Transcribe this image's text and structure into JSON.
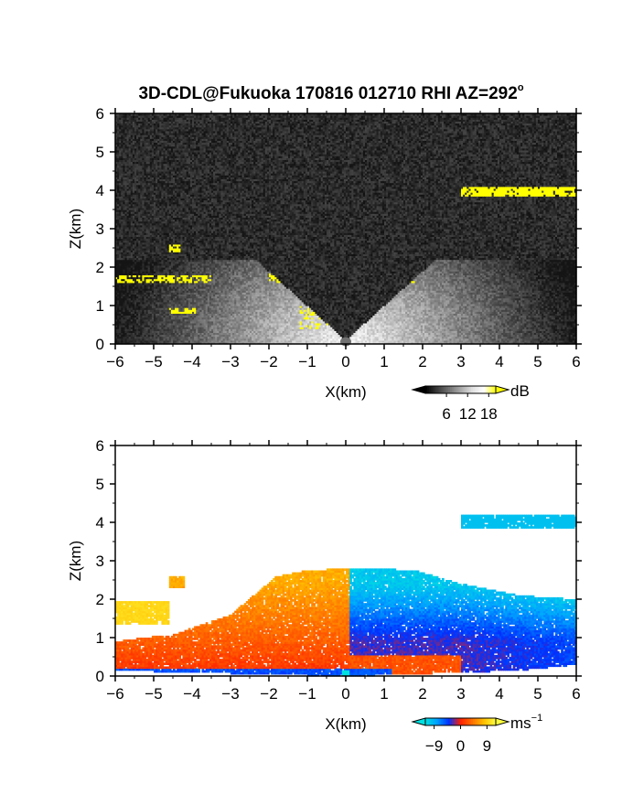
{
  "title": "3D-CDL@Fukuoka 170816 012710 RHI AZ=292",
  "title_degree": "o",
  "chart_data": [
    {
      "type": "heatmap",
      "panel": "reflectivity",
      "xlabel": "X(km)",
      "ylabel": "Z(km)",
      "xlim": [
        -6,
        6
      ],
      "ylim": [
        0,
        6
      ],
      "xticks": [
        "-6",
        "-5",
        "-4",
        "-3",
        "-2",
        "-1",
        "0",
        "1",
        "2",
        "3",
        "4",
        "5",
        "6"
      ],
      "yticks": [
        "0",
        "1",
        "2",
        "3",
        "4",
        "5",
        "6"
      ],
      "colorbar": {
        "unit": "dB",
        "ticks": [
          "6",
          "12",
          "18"
        ],
        "range": [
          0,
          20
        ],
        "colors": [
          "#000000",
          "#3a3a3a",
          "#707070",
          "#a8a8a8",
          "#e0e0e0",
          "#ffffff",
          "#ffff00"
        ]
      },
      "colors": {
        "background": "#2a2a2a",
        "high": "#ffff00"
      }
    },
    {
      "type": "heatmap",
      "panel": "doppler_velocity",
      "xlabel": "X(km)",
      "ylabel": "Z(km)",
      "xlim": [
        -6,
        6
      ],
      "ylim": [
        0,
        6
      ],
      "xticks": [
        "-6",
        "-5",
        "-4",
        "-3",
        "-2",
        "-1",
        "0",
        "1",
        "2",
        "3",
        "4",
        "5",
        "6"
      ],
      "yticks": [
        "0",
        "1",
        "2",
        "3",
        "4",
        "5",
        "6"
      ],
      "colorbar": {
        "unit": "ms",
        "unit_exp": "-1",
        "ticks": [
          "-9",
          "0",
          "9"
        ],
        "range": [
          -12,
          12
        ],
        "colors": [
          "#00e0e0",
          "#00a0ff",
          "#0030ff",
          "#ff2000",
          "#ff7000",
          "#ffc000",
          "#ffff40"
        ]
      }
    }
  ]
}
